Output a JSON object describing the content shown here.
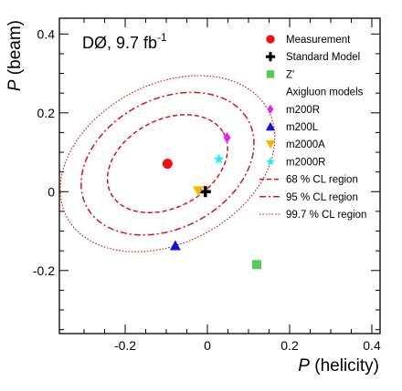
{
  "chart_data": {
    "type": "scatter",
    "annotation": {
      "prefix": "DØ, 9.7 fb",
      "superscript": "-1"
    },
    "xlabel": {
      "symbol": "P",
      "text": " (helicity)"
    },
    "ylabel": {
      "symbol": "P",
      "text": " (beam)"
    },
    "xlim": [
      -0.36,
      0.42
    ],
    "ylim": [
      -0.36,
      0.44
    ],
    "xticks": [
      -0.2,
      0,
      0.2,
      0.4
    ],
    "yticks": [
      -0.2,
      0,
      0.2,
      0.4
    ],
    "xtick_labels": [
      "-0.2",
      "0",
      "0.2",
      "0.4"
    ],
    "ytick_labels": [
      "-0.2",
      "0",
      "0.2",
      "0.4"
    ],
    "grid": false,
    "legend_position": "top-right",
    "legend_header": "Axigluon models",
    "points": [
      {
        "name": "Measurement",
        "x": -0.097,
        "y": 0.071,
        "color": "#ee1111",
        "marker": "circle"
      },
      {
        "name": "Standard Model",
        "x": -0.005,
        "y": 0.0,
        "color": "#000000",
        "marker": "cross"
      },
      {
        "name": "Z'",
        "x": 0.12,
        "y": -0.185,
        "color": "#55cc55",
        "marker": "square"
      },
      {
        "name": "m200R",
        "x": 0.048,
        "y": 0.137,
        "color": "#ee22ee",
        "marker": "diamond"
      },
      {
        "name": "m200L",
        "x": -0.078,
        "y": -0.137,
        "color": "#1111dd",
        "marker": "triangle-up"
      },
      {
        "name": "m2000A",
        "x": -0.022,
        "y": 0.002,
        "color": "#f2b800",
        "marker": "triangle-down"
      },
      {
        "name": "m2000R",
        "x": 0.028,
        "y": 0.082,
        "color": "#22eeee",
        "marker": "star"
      }
    ],
    "regions": [
      {
        "name": "68 % CL region",
        "center": [
          -0.097,
          0.071
        ],
        "semi_major": 0.157,
        "semi_minor": 0.11,
        "angle_deg": 31,
        "color": "#dd1111",
        "style": "dashed"
      },
      {
        "name": "95 % CL region",
        "center": [
          -0.097,
          0.071
        ],
        "semi_major": 0.225,
        "semi_minor": 0.162,
        "angle_deg": 31,
        "color": "#dd1111",
        "style": "dashdot"
      },
      {
        "name": "99.7 % CL region",
        "center": [
          -0.097,
          0.071
        ],
        "semi_major": 0.28,
        "semi_minor": 0.199,
        "angle_deg": 31,
        "color": "#dd1111",
        "style": "dotted"
      }
    ]
  }
}
